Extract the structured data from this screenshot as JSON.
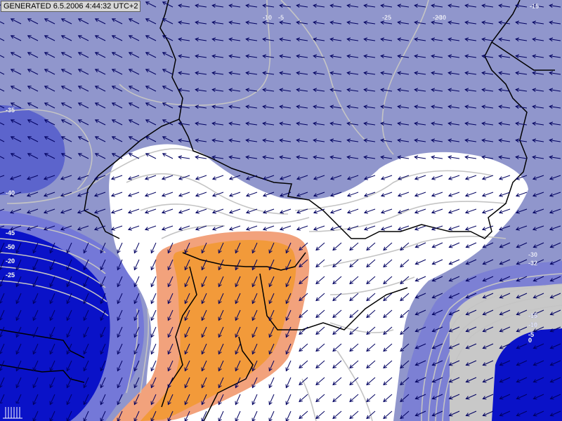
{
  "header": {
    "generated_label": "GENERATED 6.5.2006 4:44:32 UTC+2"
  },
  "colors": {
    "background": "#9096cc",
    "light_band": "#ffffff",
    "warm_band_outer": "#f2a27c",
    "warm_band_inner": "#f29a3a",
    "deep_blue": "#0a12c8",
    "mid_blue": "#5c64cc",
    "grey_zone": "#c8c8c8",
    "isoline": "#c4c4c4",
    "borders": "#000000",
    "wind_arrows": "#000060"
  },
  "isoline_labels": [
    {
      "text": "-15"
    },
    {
      "text": "-10"
    },
    {
      "text": "-5"
    },
    {
      "text": "-20"
    },
    {
      "text": "-25"
    },
    {
      "text": "-30"
    },
    {
      "text": "-35"
    },
    {
      "text": "-40"
    },
    {
      "text": "-45"
    },
    {
      "text": "-50"
    },
    {
      "text": "-20"
    },
    {
      "text": "-25"
    },
    {
      "text": "-30"
    },
    {
      "text": "-32"
    },
    {
      "text": "-15"
    },
    {
      "text": "-10"
    },
    {
      "text": "-5"
    },
    {
      "text": "0"
    }
  ],
  "legend": {
    "icons": [
      "compass-rose-icon",
      "wind-arrow-icon"
    ]
  }
}
